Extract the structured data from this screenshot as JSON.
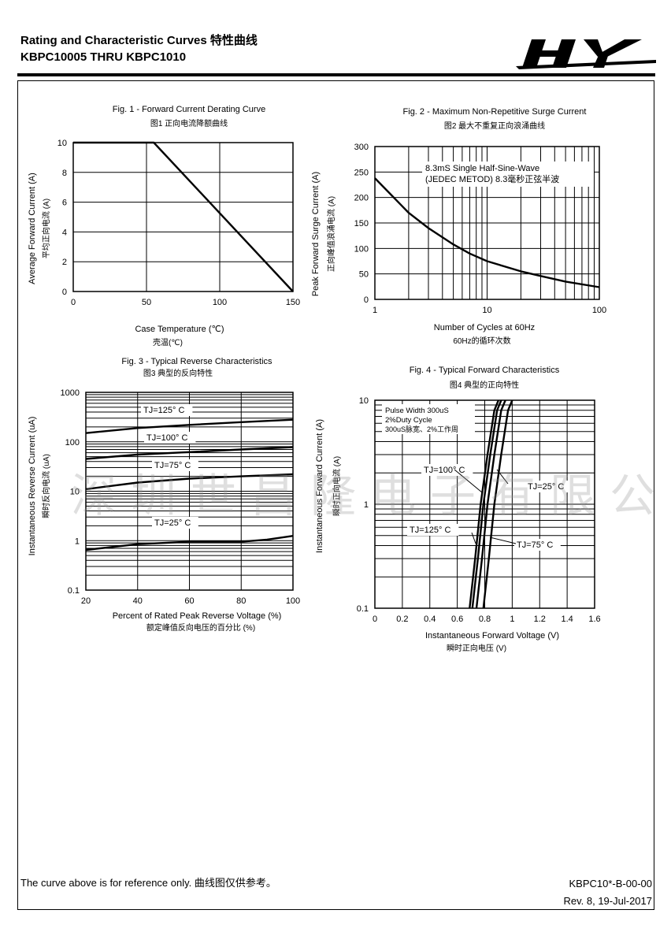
{
  "header": {
    "title_line1": "Rating and Characteristic Curves 特性曲线",
    "title_line2": "KBPC10005 THRU KBPC1010",
    "logo_text": "HY"
  },
  "watermark": "深圳世昌隆电子有限公司",
  "footer": {
    "note": "The curve above is for reference only.  曲线图仅供参考。",
    "doc_id": "KBPC10*-B-00-00",
    "revision": "Rev. 8, 19-Jul-2017"
  },
  "chart_data": [
    {
      "id": "fig1",
      "type": "line",
      "title": "Fig. 1 - Forward Current Derating Curve",
      "subtitle": "图1 正向电流降额曲线",
      "xlabel": "Case Temperature (℃)",
      "xlabel_cn": "壳温(℃)",
      "ylabel": "Average Forward Current (A)",
      "ylabel_cn": "平均正向电流 (A)",
      "xlim": [
        0,
        150
      ],
      "ylim": [
        0,
        10
      ],
      "xscale": "linear",
      "yscale": "linear",
      "xticks": [
        "0",
        "50",
        "100",
        "150"
      ],
      "yticks": [
        "0",
        "2",
        "4",
        "6",
        "8",
        "10"
      ],
      "grid": true,
      "series": [
        {
          "x": [
            0,
            55,
            150
          ],
          "y": [
            10,
            10,
            0
          ]
        }
      ]
    },
    {
      "id": "fig2",
      "type": "line",
      "title": "Fig. 2 - Maximum Non-Repetitive Surge Current",
      "subtitle": "图2 最大不重复正向浪涌曲线",
      "xlabel": "Number of Cycles at 60Hz",
      "xlabel_cn": "60Hz的循环次数",
      "ylabel": "Peak Forward Surge Current (A)",
      "ylabel_cn": "正向峰值浪涌电流 (A)",
      "xlim": [
        1,
        100
      ],
      "ylim": [
        0,
        300
      ],
      "xscale": "log",
      "yscale": "linear",
      "xticks": [
        "1",
        "10",
        "100"
      ],
      "yticks": [
        "0",
        "50",
        "100",
        "150",
        "200",
        "250",
        "300"
      ],
      "grid": true,
      "annotations": [
        "8.3mS Single Half-Sine-Wave",
        "(JEDEC METOD)  8.3毫秒正弦半波"
      ],
      "series": [
        {
          "x": [
            1,
            2,
            3,
            5,
            7,
            10,
            20,
            30,
            50,
            100
          ],
          "y": [
            238,
            170,
            140,
            108,
            90,
            75,
            55,
            46,
            35,
            24
          ]
        }
      ]
    },
    {
      "id": "fig3",
      "type": "line",
      "title": "Fig. 3 - Typical Reverse Characteristics",
      "subtitle": "图3 典型的反向特性",
      "xlabel": "Percent of Rated Peak Reverse Voltage (%)",
      "xlabel_cn": "额定峰值反向电压的百分比 (%)",
      "ylabel": "Instantaneous Reverse Current (uA)",
      "ylabel_cn": "瞬时反向电流 (uA)",
      "xlim": [
        20,
        100
      ],
      "ylim": [
        0.1,
        1000
      ],
      "xscale": "linear",
      "yscale": "log",
      "xticks": [
        "20",
        "40",
        "60",
        "80",
        "100"
      ],
      "yticks": [
        "0.1",
        "1",
        "10",
        "100",
        "1000"
      ],
      "grid": true,
      "series": [
        {
          "name": "TJ=125° C",
          "x": [
            20,
            40,
            60,
            80,
            100
          ],
          "y": [
            150,
            190,
            220,
            250,
            280
          ]
        },
        {
          "name": "TJ=100° C",
          "x": [
            20,
            40,
            60,
            80,
            100
          ],
          "y": [
            45,
            55,
            62,
            70,
            78
          ]
        },
        {
          "name": "TJ=75° C",
          "x": [
            20,
            40,
            60,
            80,
            100
          ],
          "y": [
            11,
            15,
            18,
            20,
            22
          ]
        },
        {
          "name": "TJ=25° C",
          "x": [
            20,
            40,
            60,
            80,
            90,
            100
          ],
          "y": [
            0.65,
            0.85,
            0.95,
            0.95,
            1.05,
            1.25
          ]
        }
      ]
    },
    {
      "id": "fig4",
      "type": "line",
      "title": "Fig. 4 - Typical Forward Characteristics",
      "subtitle": "图4 典型的正向特性",
      "xlabel": "Instantaneous Forward Voltage (V)",
      "xlabel_cn": "瞬时正向电压 (V)",
      "ylabel": "Instantaneous Forward Current (A)",
      "ylabel_cn": "瞬时正向电流 (A)",
      "xlim": [
        0,
        1.6
      ],
      "ylim": [
        0.1,
        10
      ],
      "xscale": "linear",
      "yscale": "log",
      "xticks": [
        "0",
        "0.2",
        "0.4",
        "0.6",
        "0.8",
        "1",
        "1.2",
        "1.4",
        "1.6"
      ],
      "yticks": [
        "0.1",
        "1",
        "10"
      ],
      "grid": true,
      "annotations": [
        "Pulse Width 300uS",
        "2%Duty Cycle",
        "300uS脉宽、2%工作周"
      ],
      "series": [
        {
          "name": "TJ=125° C",
          "x": [
            0.69,
            0.73,
            0.77,
            0.82,
            0.87,
            0.9
          ],
          "y": [
            0.1,
            0.3,
            1,
            3,
            8,
            10
          ]
        },
        {
          "name": "TJ=100° C",
          "x": [
            0.71,
            0.75,
            0.79,
            0.84,
            0.89,
            0.92
          ],
          "y": [
            0.1,
            0.3,
            1,
            3,
            8,
            10
          ]
        },
        {
          "name": "TJ=75° C",
          "x": [
            0.74,
            0.78,
            0.82,
            0.87,
            0.92,
            0.95
          ],
          "y": [
            0.1,
            0.3,
            1,
            3,
            8,
            10
          ]
        },
        {
          "name": "TJ=25° C",
          "x": [
            0.79,
            0.83,
            0.87,
            0.92,
            0.97,
            1.0
          ],
          "y": [
            0.1,
            0.3,
            1,
            3,
            8,
            10
          ]
        }
      ]
    }
  ]
}
